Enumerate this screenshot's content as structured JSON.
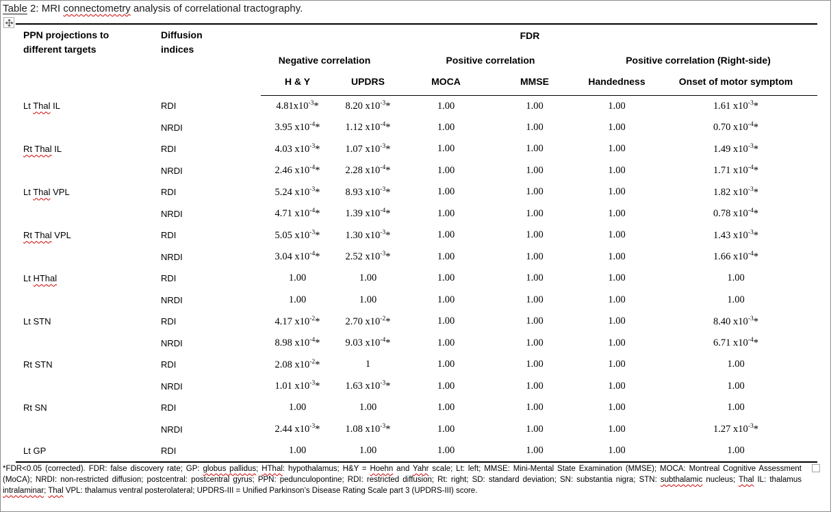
{
  "title": {
    "segments": [
      {
        "t": "Table",
        "u": true
      },
      {
        "t": " 2: MRI "
      },
      {
        "t": "connectometry",
        "sq": true
      },
      {
        "t": " analysis of correlational tractography."
      }
    ]
  },
  "icons": {
    "move_handle": "four-direction-move-arrows",
    "anchor_marker": "small-square-outline"
  },
  "colors": {
    "spellcheck_squiggle": "#cc0000",
    "table_rule": "#000000",
    "background": "#ffffff"
  },
  "table": {
    "col1_header": "PPN projections to\ndifferent targets",
    "col2_header": "Diffusion\nindices",
    "fdr_header": "FDR",
    "groups": [
      {
        "label": "Negative correlation"
      },
      {
        "label": "Positive correlation"
      },
      {
        "label": "Positive correlation (Right-side)"
      }
    ],
    "columns": [
      "H & Y",
      "UPDRS",
      "MOCA",
      "MMSE",
      "Handedness",
      "Onset of motor symptom"
    ],
    "rows": [
      {
        "target": [
          {
            "t": "Lt "
          },
          {
            "t": "Thal",
            "sq": true
          },
          {
            "t": " IL"
          }
        ],
        "index": "RDI",
        "values": [
          "4.81x10^-3^*",
          "8.20 x10^-3^*",
          "1.00",
          "1.00",
          "1.00",
          "1.61 x10^-3^*"
        ]
      },
      {
        "target": [],
        "index": "NRDI",
        "values": [
          "3.95 x10^-4^*",
          "1.12 x10^-4^*",
          "1.00",
          "1.00",
          "1.00",
          "0.70 x10^-4^*"
        ]
      },
      {
        "target": [
          {
            "t": "Rt Thal",
            "sq": true
          },
          {
            "t": " IL"
          }
        ],
        "index": "RDI",
        "values": [
          "4.03 x10^-3^*",
          "1.07 x10^-3^*",
          "1.00",
          "1.00",
          "1.00",
          "1.49 x10^-3^*"
        ]
      },
      {
        "target": [],
        "index": "NRDI",
        "values": [
          "2.46 x10^-4^*",
          "2.28 x10^-4^*",
          "1.00",
          "1.00",
          "1.00",
          "1.71 x10^-4^*"
        ]
      },
      {
        "target": [
          {
            "t": "Lt "
          },
          {
            "t": "Thal",
            "sq": true
          },
          {
            "t": " VPL"
          }
        ],
        "index": "RDI",
        "values": [
          "5.24 x10^-3^*",
          "8.93 x10^-3^*",
          "1.00",
          "1.00",
          "1.00",
          "1.82 x10^-3^*"
        ]
      },
      {
        "target": [],
        "index": "NRDI",
        "values": [
          "4.71 x10^-4^*",
          "1.39 x10^-4^*",
          "1.00",
          "1.00",
          "1.00",
          "0.78 x10^-4^*"
        ]
      },
      {
        "target": [
          {
            "t": "Rt Thal",
            "sq": true
          },
          {
            "t": " VPL"
          }
        ],
        "index": "RDI",
        "values": [
          "5.05 x10^-3^*",
          "1.30 x10^-3^*",
          "1.00",
          "1.00",
          "1.00",
          "1.43 x10^-3^*"
        ]
      },
      {
        "target": [],
        "index": "NRDI",
        "values": [
          "3.04 x10^-4^*",
          "2.52 x10^-3^*",
          "1.00",
          "1.00",
          "1.00",
          "1.66 x10^-4^*"
        ]
      },
      {
        "target": [
          {
            "t": "Lt "
          },
          {
            "t": "HThal",
            "sq": true
          }
        ],
        "index": "RDI",
        "values": [
          "1.00",
          "1.00",
          "1.00",
          "1.00",
          "1.00",
          "1.00"
        ]
      },
      {
        "target": [],
        "index": "NRDI",
        "values": [
          "1.00",
          "1.00",
          "1.00",
          "1.00",
          "1.00",
          "1.00"
        ]
      },
      {
        "target": [
          {
            "t": "Lt STN"
          }
        ],
        "index": "RDI",
        "values": [
          "4.17 x10^-2^*",
          "2.70 x10^-2^*",
          "1.00",
          "1.00",
          "1.00",
          "8.40 x10^-3^*"
        ]
      },
      {
        "target": [],
        "index": "NRDI",
        "values": [
          "8.98 x10^-4^*",
          "9.03 x10^-4^*",
          "1.00",
          "1.00",
          "1.00",
          "6.71 x10^-4^*"
        ]
      },
      {
        "target": [
          {
            "t": "Rt STN"
          }
        ],
        "index": "RDI",
        "values": [
          "2.08 x10^-2^*",
          "1",
          "1.00",
          "1.00",
          "1.00",
          "1.00"
        ]
      },
      {
        "target": [],
        "index": "NRDI",
        "values": [
          "1.01 x10^-3^*",
          "1.63 x10^-3^*",
          "1.00",
          "1.00",
          "1.00",
          "1.00"
        ]
      },
      {
        "target": [
          {
            "t": "Rt SN"
          }
        ],
        "index": "RDI",
        "values": [
          "1.00",
          "1.00",
          "1.00",
          "1.00",
          "1.00",
          "1.00"
        ]
      },
      {
        "target": [],
        "index": "NRDI",
        "values": [
          "2.44 x10^-3^*",
          "1.08 x10^-3^*",
          "1.00",
          "1.00",
          "1.00",
          "1.27 x10^-3^*"
        ]
      },
      {
        "target": [
          {
            "t": "Lt GP"
          }
        ],
        "index": "RDI",
        "values": [
          "1.00",
          "1.00",
          "1.00",
          "1.00",
          "1.00",
          "1.00"
        ]
      }
    ]
  },
  "footnote": {
    "segments": [
      {
        "t": "*FDR<0.05 (corrected). FDR: false discovery rate; GP: "
      },
      {
        "t": "globus pallidus",
        "sq": true
      },
      {
        "t": "; "
      },
      {
        "t": "HThal",
        "sq": true
      },
      {
        "t": ": hypothalamus; H&Y = "
      },
      {
        "t": "Hoehn",
        "sq": true
      },
      {
        "t": " and "
      },
      {
        "t": "Yahr",
        "sq": true
      },
      {
        "t": " scale; Lt: left; MMSE: Mini-Mental State Examination (MMSE); MOCA: Montreal Cognitive Assessment (MoCA); NRDI: non-restricted diffusion; postcentral: postcentral gyrus; PPN: pedunculopontine; RDI: restricted diffusion; Rt: right; SD: standard deviation; SN: substantia nigra; STN: "
      },
      {
        "t": "subthalamic",
        "sq": true
      },
      {
        "t": " nucleus; "
      },
      {
        "t": "Thal",
        "sq": true
      },
      {
        "t": " IL: thalamus "
      },
      {
        "t": "intralaminar",
        "sq": true
      },
      {
        "t": "; "
      },
      {
        "t": "Thal",
        "sq": true
      },
      {
        "t": " VPL:  thalamus ventral posterolateral; UPDRS-III = Unified Parkinson’s Disease Rating Scale part 3 (UPDRS-III) score."
      }
    ]
  }
}
